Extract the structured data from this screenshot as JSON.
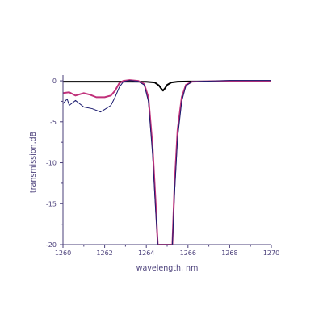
{
  "chart_data": {
    "type": "line",
    "xlabel": "wavelength, nm",
    "ylabel": "transmission,dB",
    "xlim": [
      1260,
      1270
    ],
    "ylim": [
      -20,
      0.5
    ],
    "x_ticks": [
      "1260",
      "1262",
      "1264",
      "1266",
      "1268",
      "1270"
    ],
    "y_ticks": [
      "0",
      "-5",
      "-10",
      "-15",
      "-20"
    ],
    "grid": false,
    "legend": "none",
    "axis_color": "#4a3f7a",
    "series": [
      {
        "color": "#000000",
        "points": [
          [
            1260.0,
            -0.1
          ],
          [
            1261.0,
            -0.1
          ],
          [
            1262.0,
            -0.1
          ],
          [
            1263.0,
            -0.1
          ],
          [
            1264.0,
            -0.12
          ],
          [
            1264.4,
            -0.2
          ],
          [
            1264.6,
            -0.55
          ],
          [
            1264.7,
            -0.9
          ],
          [
            1264.8,
            -1.2
          ],
          [
            1264.9,
            -0.9
          ],
          [
            1265.0,
            -0.5
          ],
          [
            1265.2,
            -0.2
          ],
          [
            1265.5,
            -0.1
          ],
          [
            1266.0,
            -0.08
          ],
          [
            1268.0,
            -0.08
          ],
          [
            1270.0,
            -0.08
          ]
        ]
      },
      {
        "color": "#c0307a",
        "points": [
          [
            1260.0,
            -1.5
          ],
          [
            1260.3,
            -1.4
          ],
          [
            1260.6,
            -1.8
          ],
          [
            1261.0,
            -1.5
          ],
          [
            1261.3,
            -1.7
          ],
          [
            1261.6,
            -2.0
          ],
          [
            1262.0,
            -2.0
          ],
          [
            1262.3,
            -1.8
          ],
          [
            1262.5,
            -1.2
          ],
          [
            1262.7,
            -0.3
          ],
          [
            1262.9,
            0.0
          ],
          [
            1263.2,
            0.1
          ],
          [
            1263.6,
            0.0
          ],
          [
            1263.9,
            -0.4
          ],
          [
            1264.1,
            -2.0
          ],
          [
            1264.3,
            -8.0
          ],
          [
            1264.45,
            -15.0
          ],
          [
            1264.55,
            -20.0
          ],
          [
            1265.25,
            -20.0
          ],
          [
            1265.35,
            -13.0
          ],
          [
            1265.5,
            -6.0
          ],
          [
            1265.7,
            -2.0
          ],
          [
            1265.9,
            -0.5
          ],
          [
            1266.2,
            -0.1
          ],
          [
            1268.0,
            0.0
          ],
          [
            1270.0,
            0.0
          ]
        ]
      },
      {
        "color": "#1a1a6e",
        "points": [
          [
            1260.0,
            -2.8
          ],
          [
            1260.2,
            -2.2
          ],
          [
            1260.3,
            -3.0
          ],
          [
            1260.6,
            -2.4
          ],
          [
            1261.0,
            -3.2
          ],
          [
            1261.4,
            -3.4
          ],
          [
            1261.8,
            -3.8
          ],
          [
            1262.0,
            -3.5
          ],
          [
            1262.3,
            -3.0
          ],
          [
            1262.5,
            -2.0
          ],
          [
            1262.7,
            -0.8
          ],
          [
            1262.9,
            -0.1
          ],
          [
            1263.2,
            0.05
          ],
          [
            1263.6,
            -0.05
          ],
          [
            1263.9,
            -0.5
          ],
          [
            1264.1,
            -2.5
          ],
          [
            1264.3,
            -9.0
          ],
          [
            1264.45,
            -16.0
          ],
          [
            1264.55,
            -20.0
          ],
          [
            1265.25,
            -20.0
          ],
          [
            1265.35,
            -14.0
          ],
          [
            1265.5,
            -7.0
          ],
          [
            1265.7,
            -2.5
          ],
          [
            1265.9,
            -0.6
          ],
          [
            1266.2,
            -0.1
          ],
          [
            1268.0,
            0.05
          ],
          [
            1270.0,
            0.05
          ]
        ]
      }
    ]
  }
}
